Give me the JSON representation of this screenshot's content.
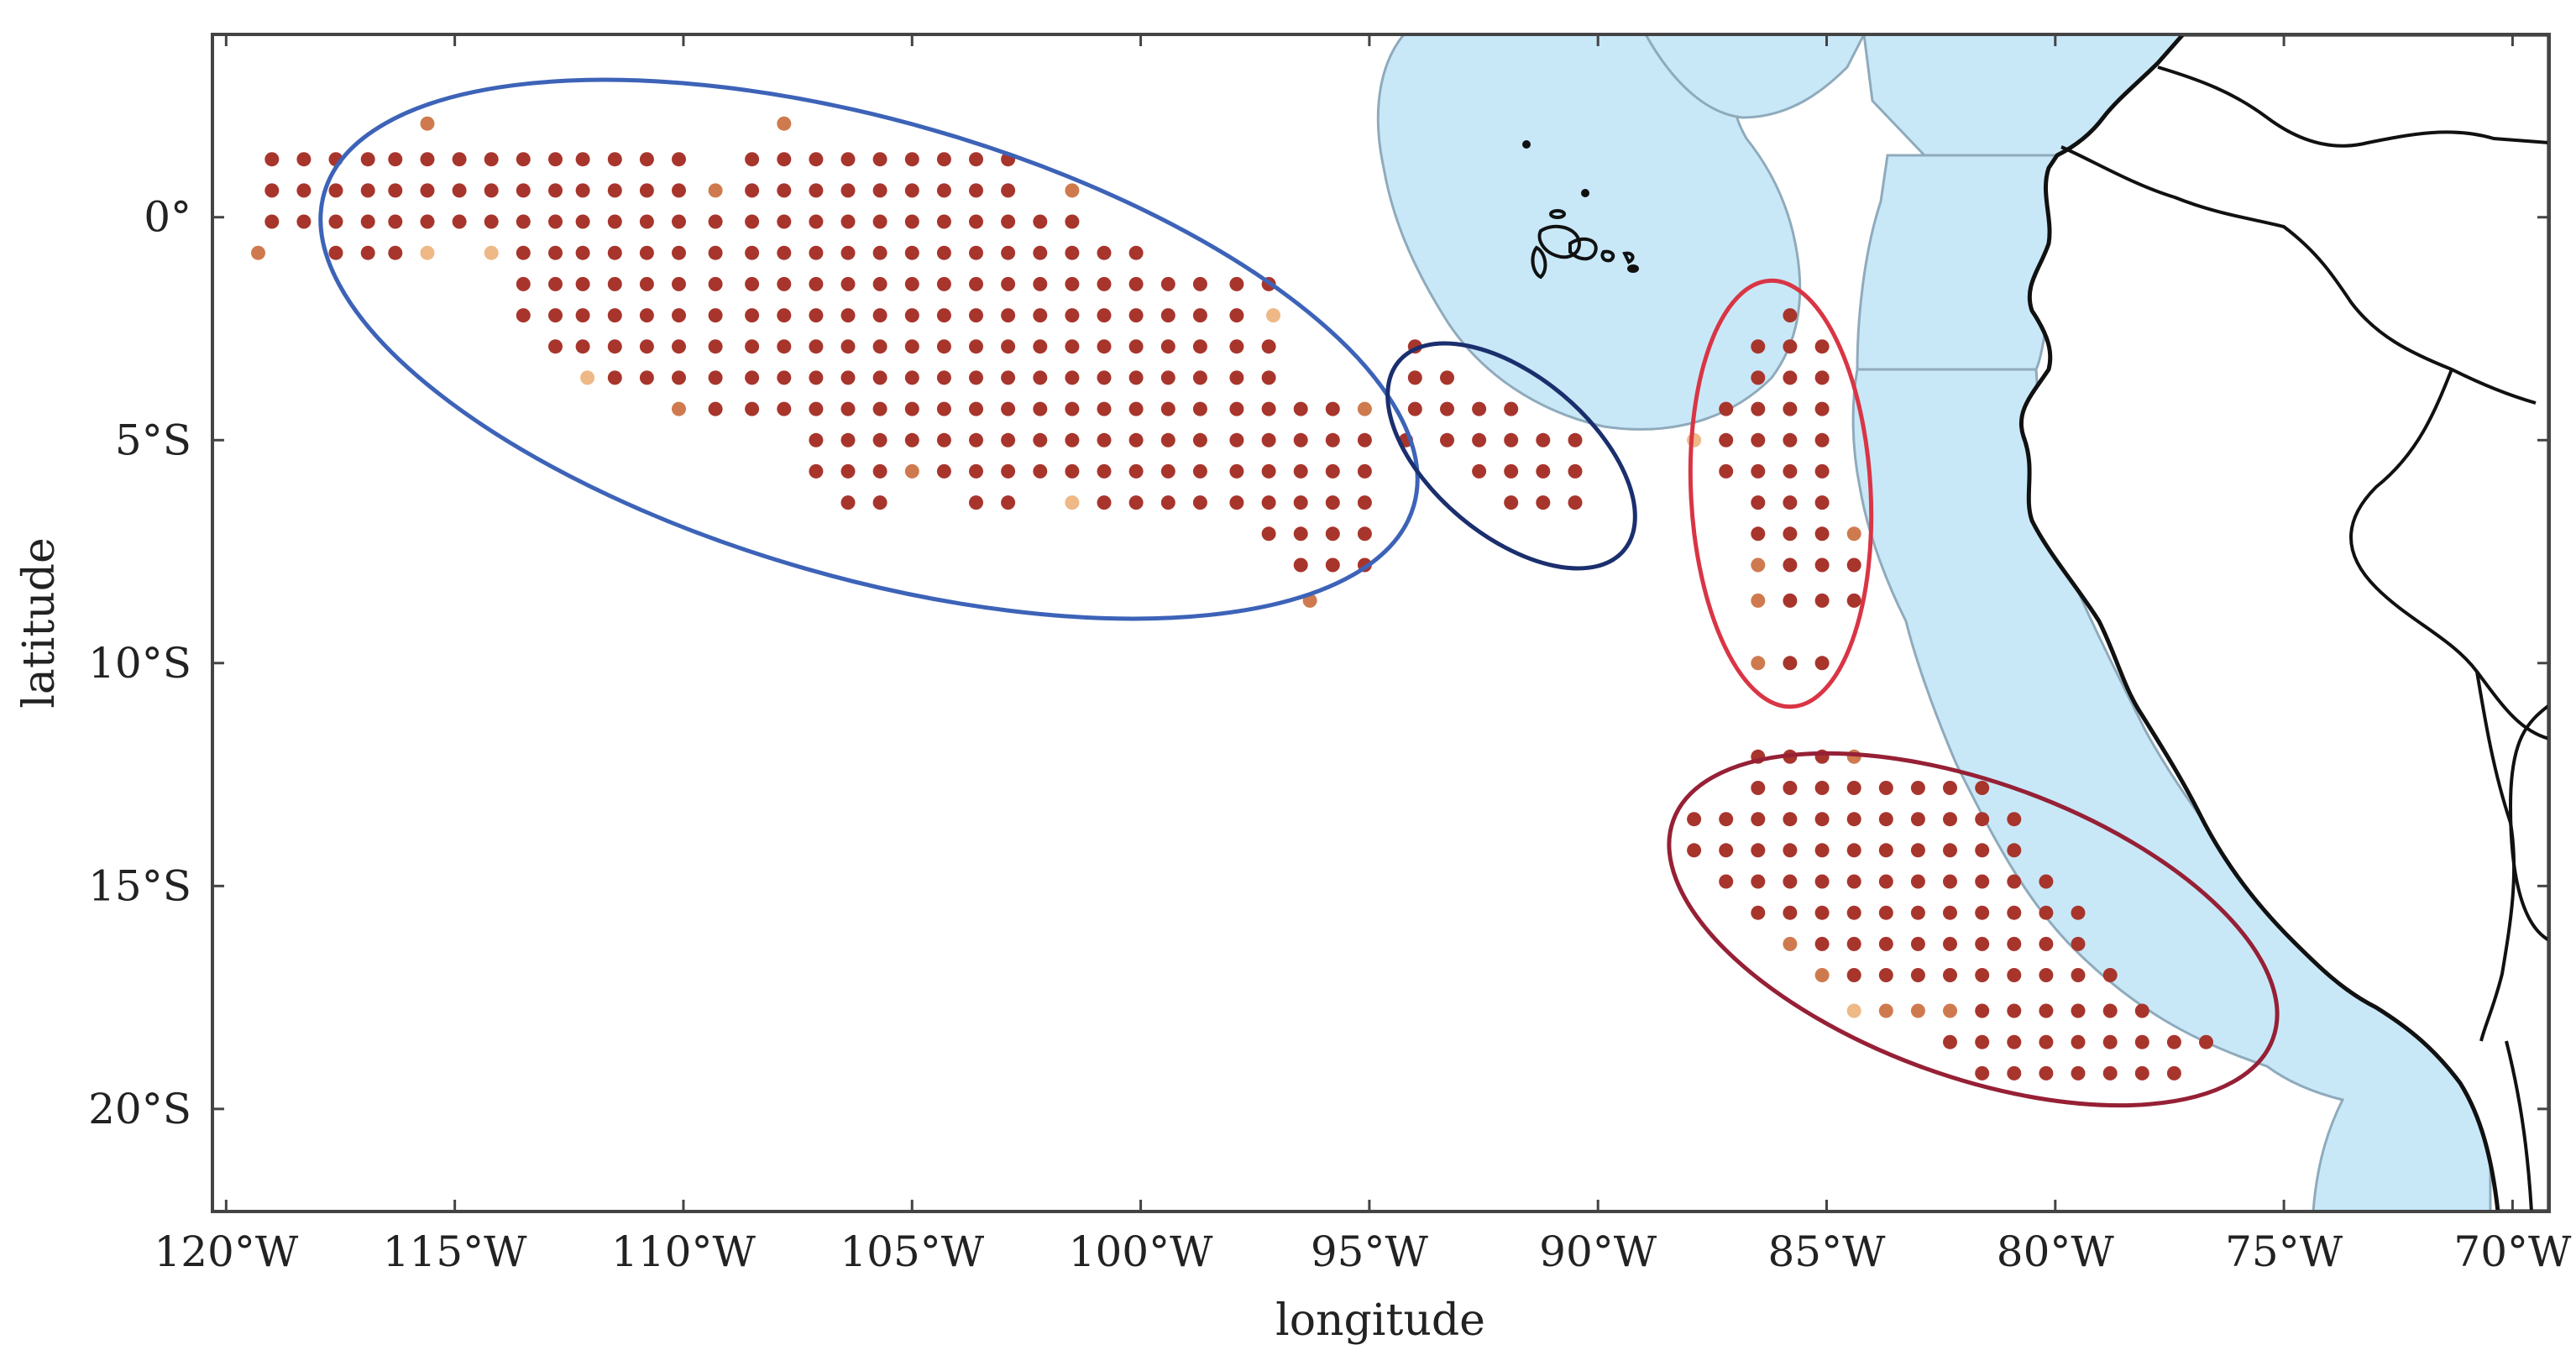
{
  "axes": {
    "xlabel": "longitude",
    "ylabel": "latitude",
    "x_ticks": [
      {
        "value": -120,
        "label": "120°W"
      },
      {
        "value": -115,
        "label": "115°W"
      },
      {
        "value": -110,
        "label": "110°W"
      },
      {
        "value": -105,
        "label": "105°W"
      },
      {
        "value": -100,
        "label": "100°W"
      },
      {
        "value": -95,
        "label": "95°W"
      },
      {
        "value": -90,
        "label": "90°W"
      },
      {
        "value": -85,
        "label": "85°W"
      },
      {
        "value": -80,
        "label": "80°W"
      },
      {
        "value": -75,
        "label": "75°W"
      },
      {
        "value": -70,
        "label": "70°W"
      }
    ],
    "y_ticks": [
      {
        "value": 0,
        "label": "0°"
      },
      {
        "value": -5,
        "label": "5°S"
      },
      {
        "value": -10,
        "label": "10°S"
      },
      {
        "value": -15,
        "label": "15°S"
      },
      {
        "value": -20,
        "label": "20°S"
      }
    ],
    "lon_range": [
      -120.3,
      -69.2
    ],
    "lat_range": [
      -22.3,
      4.1
    ]
  },
  "colors": {
    "ocean_zone": "#c8e8f8",
    "zone_border": "#8faabb",
    "land_border": "#111111",
    "dot_main": "#a8352c",
    "dot_mid": "#cf7a4e",
    "dot_light": "#eeb887",
    "ellipse_west": "#3d63b8",
    "ellipse_central": "#1b2f6e",
    "ellipse_coastal": "#d93545",
    "ellipse_south": "#962035"
  },
  "clusters": [
    {
      "name": "west",
      "color": "ellipse_west",
      "rows": [
        {
          "lat": 2.1,
          "lons": [
            {
              "lon": -115.6,
              "shade": "mid"
            },
            {
              "lon": -107.8,
              "shade": "mid"
            }
          ]
        },
        {
          "lat": 1.3,
          "lons": [
            -119,
            -118.3,
            -117.6,
            -116.9,
            -116.3,
            -115.6,
            -114.9,
            -114.2,
            -113.5,
            -112.8,
            -112.2,
            -111.5,
            -110.8,
            -110.1,
            -108.5,
            -107.8,
            -107.1,
            -106.4,
            -105.7,
            -105,
            -104.3,
            -103.6,
            -102.9
          ]
        },
        {
          "lat": 0.6,
          "lons": [
            -119,
            -118.3,
            -117.6,
            -116.9,
            -116.3,
            -115.6,
            -114.9,
            -114.2,
            -113.5,
            -112.8,
            -112.2,
            -111.5,
            -110.8,
            -110.1,
            {
              "lon": -109.3,
              "shade": "mid"
            },
            -108.5,
            -107.8,
            -107.1,
            -106.4,
            -105.7,
            -105,
            -104.3,
            -103.6,
            -102.9,
            {
              "lon": -101.5,
              "shade": "mid"
            }
          ]
        },
        {
          "lat": -0.1,
          "lons": [
            -119,
            -118.3,
            -117.6,
            -116.9,
            -116.3,
            -115.6,
            -114.9,
            -114.2,
            -113.5,
            -112.8,
            -112.2,
            -111.5,
            -110.8,
            -110.1,
            -109.3,
            -108.5,
            -107.8,
            -107.1,
            -106.4,
            -105.7,
            -105,
            -104.3,
            -103.6,
            -102.9,
            -102.2,
            -101.5
          ]
        },
        {
          "lat": -0.8,
          "lons": [
            {
              "lon": -119.3,
              "shade": "mid"
            },
            -117.6,
            -116.9,
            -116.3,
            {
              "lon": -115.6,
              "shade": "light"
            },
            {
              "lon": -114.2,
              "shade": "light"
            },
            -113.5,
            -112.8,
            -112.2,
            -111.5,
            -110.8,
            -110.1,
            -109.3,
            -108.5,
            -107.8,
            -107.1,
            -106.4,
            -105.7,
            -105,
            -104.3,
            -103.6,
            -102.9,
            -102.2,
            -101.5,
            -100.8,
            -100.1
          ]
        },
        {
          "lat": -1.5,
          "lons": [
            -113.5,
            -112.8,
            -112.2,
            -111.5,
            -110.8,
            -110.1,
            -109.3,
            -108.5,
            -107.8,
            -107.1,
            -106.4,
            -105.7,
            -105,
            -104.3,
            -103.6,
            -102.9,
            -102.2,
            -101.5,
            -100.8,
            -100.1,
            -99.4,
            -98.7,
            -97.9,
            -97.2
          ]
        },
        {
          "lat": -2.2,
          "lons": [
            -113.5,
            -112.8,
            -112.2,
            -111.5,
            -110.8,
            -110.1,
            -109.3,
            -108.5,
            -107.8,
            -107.1,
            -106.4,
            -105.7,
            -105,
            -104.3,
            -103.6,
            -102.9,
            -102.2,
            -101.5,
            -100.8,
            -100.1,
            -99.4,
            -98.7,
            -97.9,
            {
              "lon": -97.1,
              "shade": "light"
            }
          ]
        },
        {
          "lat": -2.9,
          "lons": [
            -112.8,
            -112.2,
            -111.5,
            -110.8,
            -110.1,
            -109.3,
            -108.5,
            -107.8,
            -107.1,
            -106.4,
            -105.7,
            -105,
            -104.3,
            -103.6,
            -102.9,
            -102.2,
            -101.5,
            -100.8,
            -100.1,
            -99.4,
            -98.7,
            -97.9,
            -97.2
          ]
        },
        {
          "lat": -3.6,
          "lons": [
            {
              "lon": -112.1,
              "shade": "light"
            },
            -111.5,
            -110.8,
            -110.1,
            -109.3,
            -108.5,
            -107.8,
            -107.1,
            -106.4,
            -105.7,
            -105,
            -104.3,
            -103.6,
            -102.9,
            -102.2,
            -101.5,
            -100.8,
            -100.1,
            -99.4,
            -98.7,
            -97.9,
            -97.2
          ]
        },
        {
          "lat": -4.3,
          "lons": [
            {
              "lon": -110.1,
              "shade": "mid"
            },
            -109.3,
            -108.5,
            -107.8,
            -107.1,
            -106.4,
            -105.7,
            -105,
            -104.3,
            -103.6,
            -102.9,
            -102.2,
            -101.5,
            -100.8,
            -100.1,
            -99.4,
            -98.7,
            -97.9,
            -97.2,
            -96.5,
            -95.8,
            {
              "lon": -95.1,
              "shade": "mid"
            }
          ]
        },
        {
          "lat": -5,
          "lons": [
            -107.1,
            -106.4,
            -105.7,
            -105,
            -104.3,
            -103.6,
            -102.9,
            -102.2,
            -101.5,
            -100.8,
            -100.1,
            -99.4,
            -98.7,
            -97.9,
            -97.2,
            -96.5,
            -95.8,
            -95.1
          ]
        },
        {
          "lat": -5.7,
          "lons": [
            -107.1,
            -106.4,
            -105.7,
            {
              "lon": -105,
              "shade": "mid"
            },
            -104.3,
            -103.6,
            -102.9,
            -102.2,
            -101.5,
            -100.8,
            -100.1,
            -99.4,
            -98.7,
            -97.9,
            -97.2,
            -96.5,
            -95.8,
            -95.1
          ]
        },
        {
          "lat": -6.4,
          "lons": [
            -106.4,
            -105.7,
            -103.6,
            -102.9,
            {
              "lon": -101.5,
              "shade": "light"
            },
            -100.8,
            -100.1,
            -99.4,
            -98.7,
            -97.9,
            -97.2,
            -96.5,
            -95.8,
            -95.1
          ]
        },
        {
          "lat": -7.1,
          "lons": [
            -97.2,
            -96.5,
            -95.8,
            -95.1
          ]
        },
        {
          "lat": -7.8,
          "lons": [
            -96.5,
            -95.8,
            -95.1
          ]
        },
        {
          "lat": -8.6,
          "lons": [
            {
              "lon": -96.3,
              "shade": "mid"
            }
          ]
        }
      ]
    },
    {
      "name": "central",
      "color": "ellipse_central",
      "rows": [
        {
          "lat": -2.9,
          "lons": [
            -94
          ]
        },
        {
          "lat": -3.6,
          "lons": [
            -94,
            -93.3
          ]
        },
        {
          "lat": -4.3,
          "lons": [
            -94,
            -93.3,
            -92.6,
            -91.9
          ]
        },
        {
          "lat": -5,
          "lons": [
            -94.2,
            -93.3,
            -92.6,
            -91.9,
            -91.2,
            -90.5
          ]
        },
        {
          "lat": -5.7,
          "lons": [
            -92.6,
            -91.9,
            -91.2,
            -90.5
          ]
        },
        {
          "lat": -6.4,
          "lons": [
            -91.9,
            -91.2,
            -90.5
          ]
        }
      ]
    },
    {
      "name": "coastal",
      "color": "ellipse_coastal",
      "rows": [
        {
          "lat": -2.2,
          "lons": [
            -85.8
          ]
        },
        {
          "lat": -2.9,
          "lons": [
            -86.5,
            -85.8,
            -85.1
          ]
        },
        {
          "lat": -3.6,
          "lons": [
            -86.5,
            -85.8,
            -85.1
          ]
        },
        {
          "lat": -4.3,
          "lons": [
            -87.2,
            -86.5,
            -85.8,
            -85.1
          ]
        },
        {
          "lat": -5,
          "lons": [
            {
              "lon": -87.9,
              "shade": "light"
            },
            -87.2,
            -86.5,
            -85.8,
            -85.1
          ]
        },
        {
          "lat": -5.7,
          "lons": [
            -87.2,
            -86.5,
            -85.8,
            -85.1
          ]
        },
        {
          "lat": -6.4,
          "lons": [
            -86.5,
            -85.8,
            -85.1
          ]
        },
        {
          "lat": -7.1,
          "lons": [
            -86.5,
            -85.8,
            -85.1,
            {
              "lon": -84.4,
              "shade": "mid"
            }
          ]
        },
        {
          "lat": -7.8,
          "lons": [
            {
              "lon": -86.5,
              "shade": "mid"
            },
            -85.8,
            -85.1,
            -84.4
          ]
        },
        {
          "lat": -8.6,
          "lons": [
            {
              "lon": -86.5,
              "shade": "mid"
            },
            -85.8,
            -85.1,
            -84.4
          ]
        },
        {
          "lat": -10,
          "lons": [
            {
              "lon": -86.5,
              "shade": "mid"
            },
            -85.8,
            -85.1
          ]
        }
      ]
    },
    {
      "name": "south",
      "color": "ellipse_south",
      "rows": [
        {
          "lat": -12.1,
          "lons": [
            -86.5,
            -85.8,
            -85.1,
            {
              "lon": -84.4,
              "shade": "mid"
            }
          ]
        },
        {
          "lat": -12.8,
          "lons": [
            -86.5,
            -85.8,
            -85.1,
            -84.4,
            -83.7,
            -83,
            -82.3,
            -81.6
          ]
        },
        {
          "lat": -13.5,
          "lons": [
            -87.9,
            -87.2,
            -86.5,
            -85.8,
            -85.1,
            -84.4,
            -83.7,
            -83,
            -82.3,
            -81.6,
            -80.9
          ]
        },
        {
          "lat": -14.2,
          "lons": [
            -87.9,
            -87.2,
            -86.5,
            -85.8,
            -85.1,
            -84.4,
            -83.7,
            -83,
            -82.3,
            -81.6,
            -80.9
          ]
        },
        {
          "lat": -14.9,
          "lons": [
            -87.2,
            -86.5,
            -85.8,
            -85.1,
            -84.4,
            -83.7,
            -83,
            -82.3,
            -81.6,
            -80.9,
            -80.2
          ]
        },
        {
          "lat": -15.6,
          "lons": [
            -86.5,
            -85.8,
            -85.1,
            -84.4,
            -83.7,
            -83,
            -82.3,
            -81.6,
            -80.9,
            -80.2,
            -79.5
          ]
        },
        {
          "lat": -16.3,
          "lons": [
            {
              "lon": -85.8,
              "shade": "mid"
            },
            -85.1,
            -84.4,
            -83.7,
            -83,
            -82.3,
            -81.6,
            -80.9,
            -80.2,
            -79.5
          ]
        },
        {
          "lat": -17,
          "lons": [
            {
              "lon": -85.1,
              "shade": "mid"
            },
            -84.4,
            -83.7,
            -83,
            -82.3,
            -81.6,
            -80.9,
            -80.2,
            -79.5,
            -78.8
          ]
        },
        {
          "lat": -17.8,
          "lons": [
            {
              "lon": -84.4,
              "shade": "light"
            },
            {
              "lon": -83.7,
              "shade": "mid"
            },
            {
              "lon": -83,
              "shade": "mid"
            },
            {
              "lon": -82.3,
              "shade": "mid"
            },
            -81.6,
            -80.9,
            -80.2,
            -79.5,
            -78.8,
            -78.1
          ]
        },
        {
          "lat": -18.5,
          "lons": [
            -82.3,
            -81.6,
            -80.9,
            -80.2,
            -79.5,
            -78.8,
            -78.1,
            -77.4,
            -76.7
          ]
        },
        {
          "lat": -19.2,
          "lons": [
            -81.6,
            -80.9,
            -80.2,
            -79.5,
            -78.8,
            -78.1,
            -77.4
          ]
        }
      ]
    }
  ]
}
